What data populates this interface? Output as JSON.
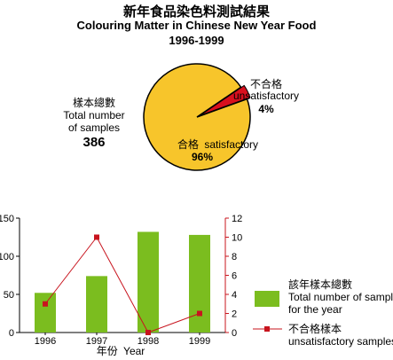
{
  "titles": {
    "zh": "新年食品染色料測試結果",
    "en": "Colouring Matter in Chinese New Year Food",
    "years": "1996-1999"
  },
  "chart_data": [
    {
      "type": "pie",
      "total_label_zh": "樣本總數",
      "total_label_en_1": "Total number",
      "total_label_en_2": "of samples",
      "total_value": "386",
      "slices": [
        {
          "label_zh": "合格",
          "label_en": "satisfactory",
          "value": 96,
          "value_label": "96%",
          "color": "#f7c52b"
        },
        {
          "label_zh": "不合格",
          "label_en": "unsatisfactory",
          "value": 4,
          "value_label": "4%",
          "color": "#d8101e"
        }
      ]
    },
    {
      "type": "bar",
      "categories": [
        "1996",
        "1997",
        "1998",
        "1999"
      ],
      "xlabel_zh": "年份",
      "xlabel_en": "Year",
      "ylim_left": [
        0,
        150
      ],
      "yticks_left": [
        "0",
        "50",
        "100",
        "150"
      ],
      "ylim_right": [
        0,
        12
      ],
      "yticks_right": [
        "0",
        "2",
        "4",
        "6",
        "8",
        "10",
        "12"
      ],
      "grid": false,
      "legend": "right",
      "series": [
        {
          "name_zh": "該年樣本總數",
          "name_en_1": "Total number of samples",
          "name_en_2": "for the year",
          "kind": "bar",
          "axis": "left",
          "values": [
            52,
            74,
            132,
            128
          ],
          "color": "#7bbd1f"
        },
        {
          "name_zh": "不合格樣本",
          "name_en_1": "unsatisfactory samples",
          "kind": "line",
          "axis": "right",
          "values": [
            3,
            10,
            0,
            2
          ],
          "color": "#c8141e"
        }
      ]
    }
  ]
}
